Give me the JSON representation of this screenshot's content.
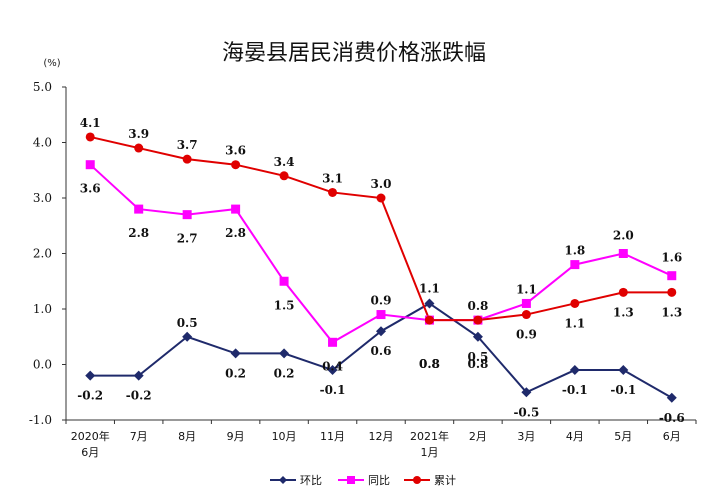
{
  "chart_data": {
    "type": "line",
    "title": "海晏县居民消费价格涨跌幅",
    "unit": "(%)",
    "xlabel": "",
    "ylabel": "",
    "ylim": [
      -1.0,
      5.0
    ],
    "yticks": [
      "5.0",
      "4.0",
      "3.0",
      "2.0",
      "1.0",
      "0.0",
      "-1.0"
    ],
    "grid": false,
    "legend_position": "bottom",
    "categories": [
      [
        "2020年",
        "6月"
      ],
      [
        "7月"
      ],
      [
        "8月"
      ],
      [
        "9月"
      ],
      [
        "10月"
      ],
      [
        "11月"
      ],
      [
        "12月"
      ],
      [
        "2021年",
        "1月"
      ],
      [
        "2月"
      ],
      [
        "3月"
      ],
      [
        "4月"
      ],
      [
        "5月"
      ],
      [
        "6月"
      ]
    ],
    "series": [
      {
        "name": "环比",
        "color": "#1f2a6b",
        "marker": "diamond",
        "values": [
          -0.2,
          -0.2,
          0.5,
          0.2,
          0.2,
          -0.1,
          0.6,
          1.1,
          0.5,
          -0.5,
          -0.1,
          -0.1,
          -0.6
        ],
        "labels": [
          "-0.2",
          "-0.2",
          "0.5",
          "0.2",
          "0.2",
          "-0.1",
          "0.6",
          "1.1",
          "0.5",
          "-0.5",
          "-0.1",
          "-0.1",
          "-0.6"
        ]
      },
      {
        "name": "同比",
        "color": "#ff00ff",
        "marker": "square",
        "values": [
          3.6,
          2.8,
          2.7,
          2.8,
          1.5,
          0.4,
          0.9,
          0.8,
          0.8,
          1.1,
          1.8,
          2.0,
          1.6
        ],
        "labels": [
          "3.6",
          "2.8",
          "2.7",
          "2.8",
          "1.5",
          "0.4",
          "0.9",
          "0.8",
          "0.8",
          "1.1",
          "1.8",
          "2.0",
          "1.6"
        ]
      },
      {
        "name": "累计",
        "color": "#e00000",
        "marker": "circle",
        "values": [
          4.1,
          3.9,
          3.7,
          3.6,
          3.4,
          3.1,
          3.0,
          0.8,
          0.8,
          0.9,
          1.1,
          1.3,
          1.3
        ],
        "labels": [
          "4.1",
          "3.9",
          "3.7",
          "3.6",
          "3.4",
          "3.1",
          "3.0",
          "0.8",
          "0.8",
          "0.9",
          "1.1",
          "1.3",
          "1.3"
        ]
      }
    ]
  }
}
